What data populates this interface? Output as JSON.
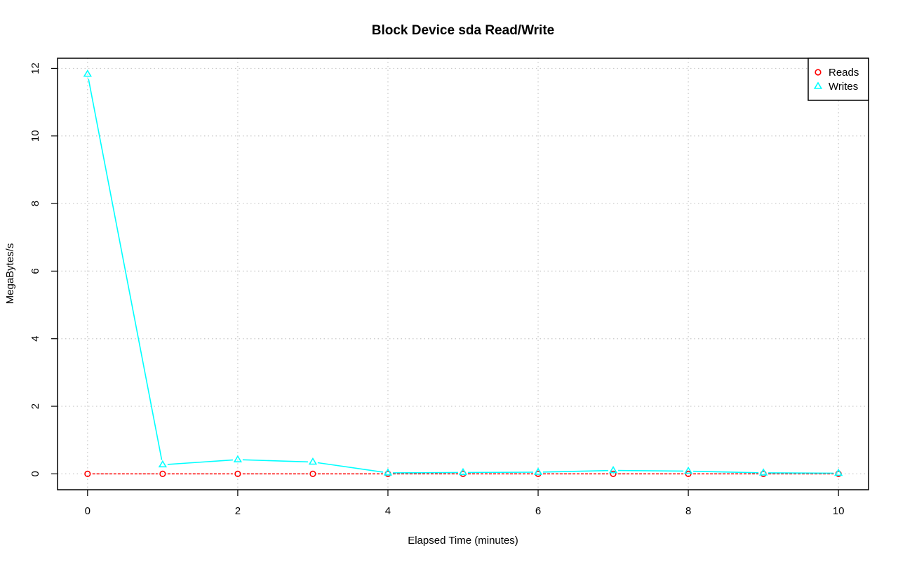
{
  "chart_data": {
    "type": "line",
    "title": "Block Device sda Read/Write",
    "xlabel": "Elapsed Time (minutes)",
    "ylabel": "MegaBytes/s",
    "x": [
      0,
      1,
      2,
      3,
      4,
      5,
      6,
      7,
      8,
      9,
      10
    ],
    "xlim": [
      -0.4,
      10.4
    ],
    "ylim": [
      -0.47,
      12.3
    ],
    "xticks": [
      0,
      2,
      4,
      6,
      8,
      10
    ],
    "xtick_labels": [
      "0",
      "2",
      "4",
      "6",
      "8",
      "10"
    ],
    "yticks": [
      0,
      2,
      4,
      6,
      8,
      10,
      12
    ],
    "ytick_labels": [
      "0",
      "2",
      "4",
      "6",
      "8",
      "10",
      "12"
    ],
    "grid": true,
    "legend_position": "top-right",
    "series": [
      {
        "name": "Reads",
        "color": "#ff0000",
        "marker": "circle",
        "line_style": "dashed",
        "values": [
          0,
          0,
          0,
          0,
          0,
          0,
          0,
          0,
          0,
          0,
          0
        ]
      },
      {
        "name": "Writes",
        "color": "#00ffff",
        "marker": "triangle",
        "line_style": "solid",
        "values": [
          11.83,
          0.27,
          0.42,
          0.35,
          0.03,
          0.04,
          0.05,
          0.1,
          0.08,
          0.03,
          0.02
        ]
      }
    ]
  }
}
